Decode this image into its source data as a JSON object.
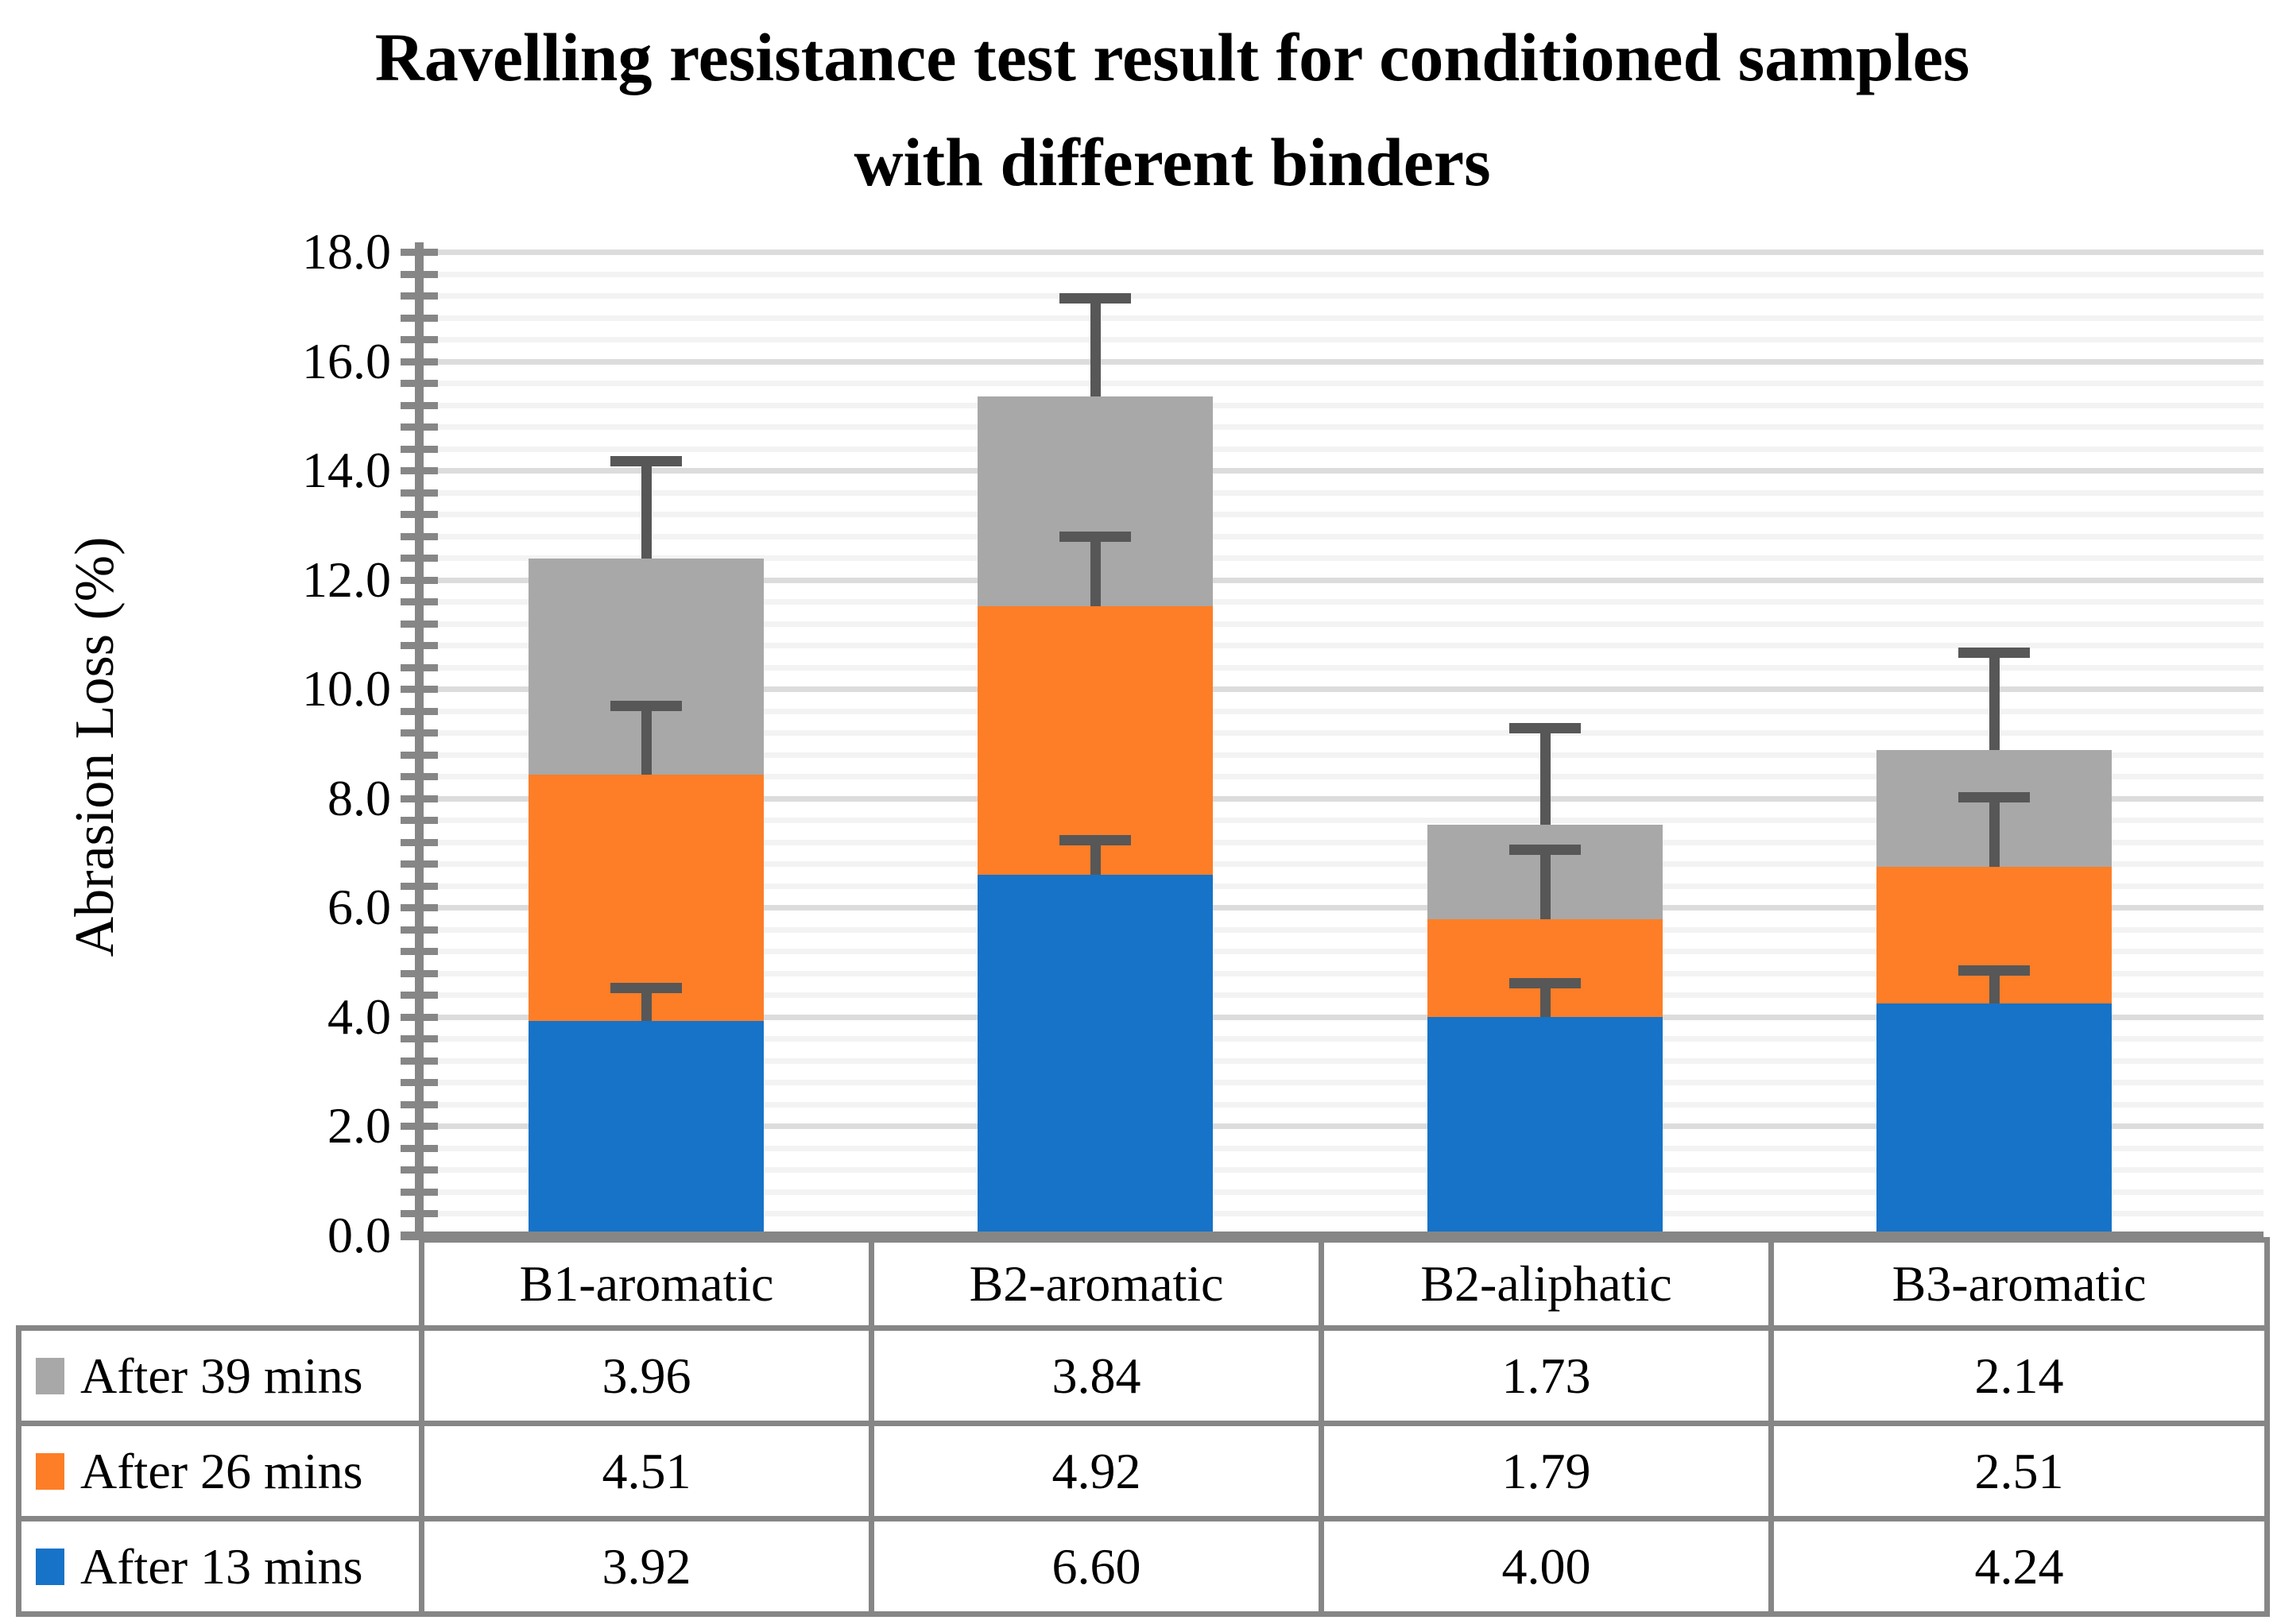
{
  "title": {
    "line1": "Ravelling resistance test result for conditioned samples",
    "line2": "with different binders"
  },
  "y_axis": {
    "label": "Abrasion Loss  (%)",
    "min": 0,
    "max": 18,
    "major_step": 2.0,
    "minor_step": 0.4,
    "tick_labels": [
      "0.0",
      "2.0",
      "4.0",
      "6.0",
      "8.0",
      "10.0",
      "12.0",
      "14.0",
      "16.0",
      "18.0"
    ]
  },
  "chart_data": {
    "type": "bar",
    "stacked": true,
    "title": "Ravelling resistance test result for conditioned samples with different binders",
    "xlabel": "",
    "ylabel": "Abrasion Loss (%)",
    "ylim": [
      0,
      18
    ],
    "grid": true,
    "legend_position": "table-left",
    "categories": [
      "B1-aromatic",
      "B2-aromatic",
      "B2-aliphatic",
      "B3-aromatic"
    ],
    "series": [
      {
        "name": "After 13 mins",
        "color": "#1673C8",
        "values": [
          3.92,
          6.6,
          4.0,
          4.24
        ],
        "labels": [
          "3.92",
          "6.60",
          "4.00",
          "4.24"
        ],
        "error_whisker_tops": [
          4.54,
          7.24,
          4.62,
          4.86
        ]
      },
      {
        "name": "After 26 mins",
        "color": "#FD7E27",
        "values": [
          4.51,
          4.92,
          1.79,
          2.51
        ],
        "labels": [
          "4.51",
          "4.92",
          "1.79",
          "2.51"
        ],
        "error_whisker_tops": [
          9.7,
          12.79,
          7.07,
          8.02
        ]
      },
      {
        "name": "After 39 mins",
        "color": "#A8A8A8",
        "values": [
          3.96,
          3.84,
          1.73,
          2.14
        ],
        "labels": [
          "3.96",
          "3.84",
          "1.73",
          "2.14"
        ],
        "error_whisker_tops": [
          14.17,
          17.16,
          9.29,
          10.67
        ]
      }
    ],
    "stack_totals": [
      12.39,
      15.36,
      7.52,
      8.89
    ]
  },
  "data_table": {
    "header_cells": [
      "B1-aromatic",
      "B2-aromatic",
      "B2-aliphatic",
      "B3-aromatic"
    ],
    "row_order_top_to_bottom": [
      "After 39 mins",
      "After 26 mins",
      "After 13 mins"
    ]
  },
  "colors": {
    "bar_blue": "#1673C8",
    "bar_orange": "#FD7E27",
    "bar_gray": "#A8A8A8",
    "error_bar": "#575757",
    "axis_and_table_border": "#868686",
    "grid_major": "#DCDCDC",
    "grid_minor": "#F3F3F3",
    "text": "#000000",
    "background": "#FFFFFF"
  }
}
